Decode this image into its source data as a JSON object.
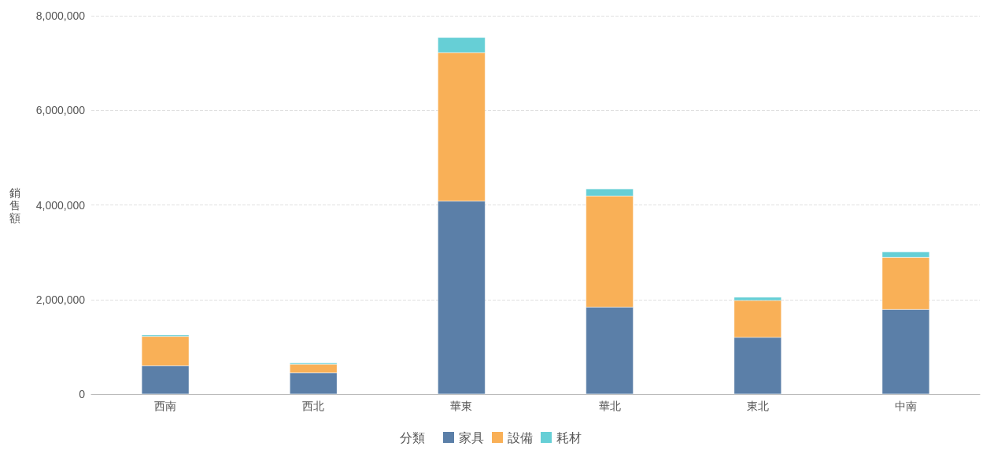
{
  "chart_data": {
    "type": "bar",
    "stacked": true,
    "ylabel": "銷售額",
    "legend_title": "分類",
    "categories": [
      "西南",
      "西北",
      "華東",
      "華北",
      "東北",
      "中南"
    ],
    "series": [
      {
        "name": "家具",
        "color": "#5b7fa8",
        "values": [
          600000,
          450000,
          4080000,
          1840000,
          1200000,
          1790000
        ]
      },
      {
        "name": "設備",
        "color": "#f9b057",
        "values": [
          620000,
          180000,
          3140000,
          2350000,
          780000,
          1100000
        ]
      },
      {
        "name": "耗材",
        "color": "#66cfd6",
        "values": [
          30000,
          30000,
          320000,
          150000,
          70000,
          120000
        ]
      }
    ],
    "ylim": [
      0,
      8000000
    ],
    "yticks": [
      {
        "value": 0,
        "label": "0"
      },
      {
        "value": 2000000,
        "label": "2,000,000"
      },
      {
        "value": 4000000,
        "label": "4,000,000"
      },
      {
        "value": 6000000,
        "label": "6,000,000"
      },
      {
        "value": 8000000,
        "label": "8,000,000"
      }
    ],
    "grid": "y",
    "legend": "bottom"
  }
}
